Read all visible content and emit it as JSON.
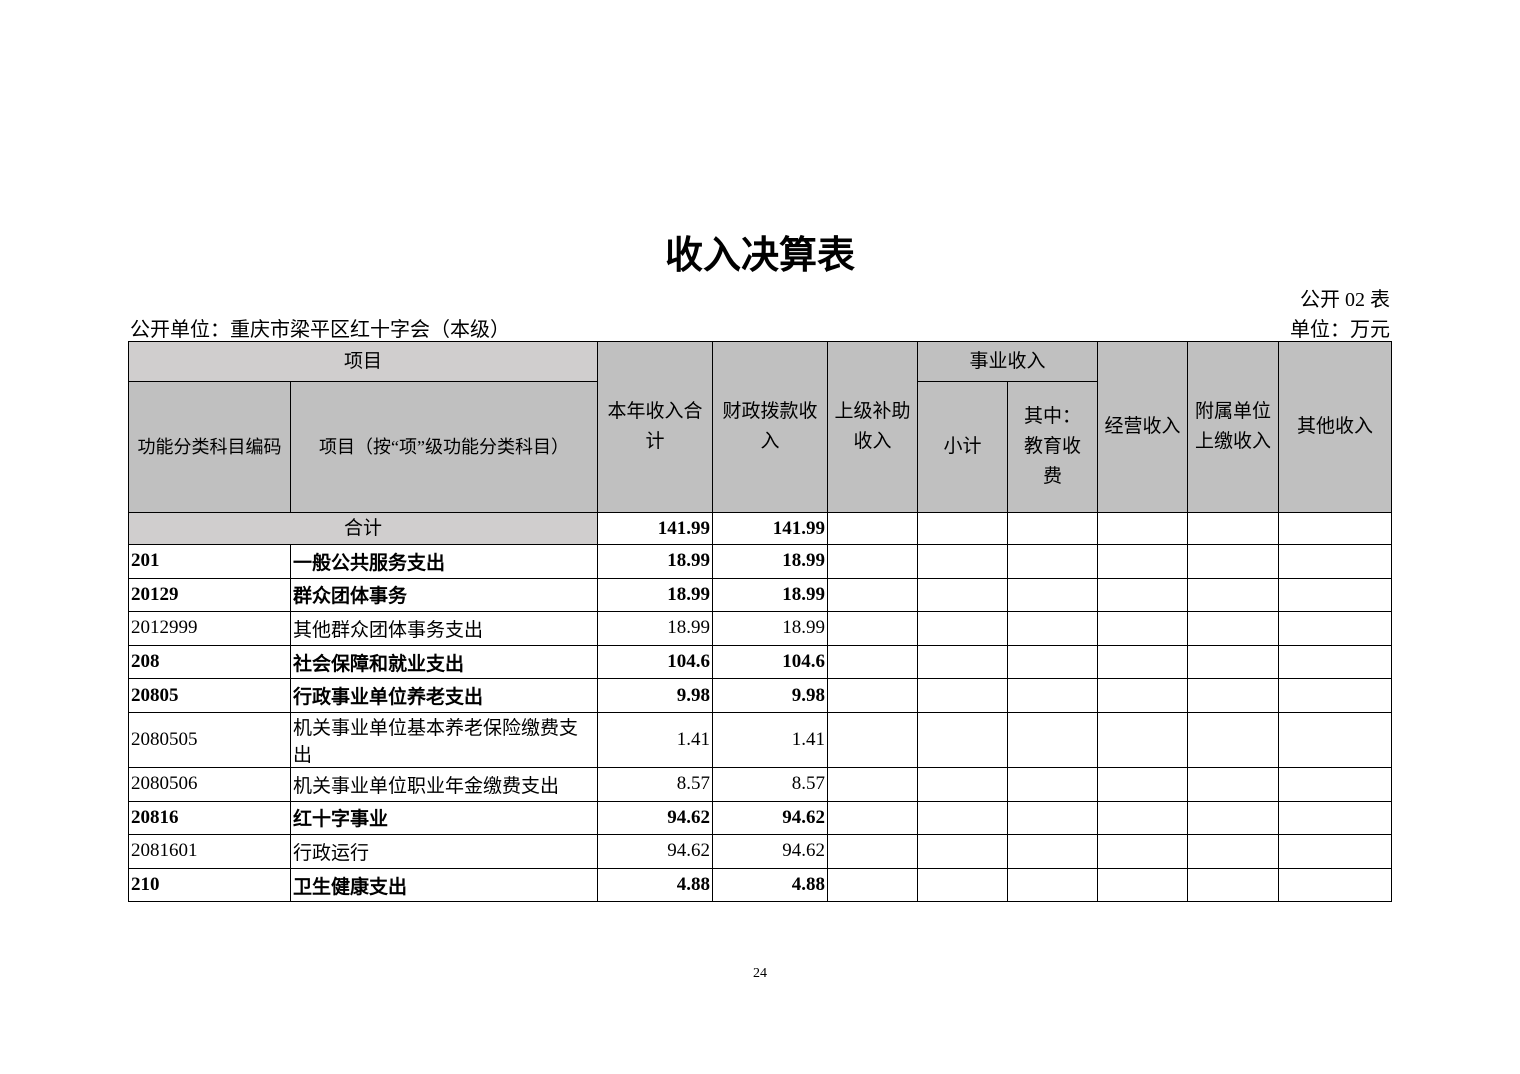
{
  "header": {
    "title": "收入决算表",
    "table_no": "公开 02 表",
    "unit_org": "公开单位：重庆市梁平区红十字会（本级）",
    "unit": "单位：万元"
  },
  "table": {
    "columns": {
      "item_group": "项目",
      "code": "功能分类科目编码",
      "name": "项目（按“项”级功能分类科目）",
      "total": "本年收入合计",
      "fiscal": "财政拨款收入",
      "superior": "上级补助收入",
      "business_group": "事业收入",
      "subtotal": "小计",
      "education": "其中：教育收费",
      "operating": "经营收入",
      "affiliated": "附属单位上缴收入",
      "other": "其他收入"
    },
    "total_row": {
      "label": "合计",
      "total": 141.99,
      "fiscal": 141.99
    },
    "rows": [
      {
        "code": "201",
        "name": "一般公共服务支出",
        "total": 18.99,
        "fiscal": 18.99,
        "bold": true
      },
      {
        "code": "20129",
        "name": "群众团体事务",
        "total": 18.99,
        "fiscal": 18.99,
        "bold": true
      },
      {
        "code": "2012999",
        "name": "其他群众团体事务支出",
        "total": 18.99,
        "fiscal": 18.99,
        "bold": false
      },
      {
        "code": "208",
        "name": "社会保障和就业支出",
        "total": 104.6,
        "fiscal": 104.6,
        "bold": true
      },
      {
        "code": "20805",
        "name": "行政事业单位养老支出",
        "total": 9.98,
        "fiscal": 9.98,
        "bold": true
      },
      {
        "code": "2080505",
        "name": "机关事业单位基本养老保险缴费支出",
        "total": 1.41,
        "fiscal": 1.41,
        "bold": false
      },
      {
        "code": "2080506",
        "name": "机关事业单位职业年金缴费支出",
        "total": 8.57,
        "fiscal": 8.57,
        "bold": false
      },
      {
        "code": "20816",
        "name": "红十字事业",
        "total": 94.62,
        "fiscal": 94.62,
        "bold": true
      },
      {
        "code": "2081601",
        "name": "行政运行",
        "total": 94.62,
        "fiscal": 94.62,
        "bold": false
      },
      {
        "code": "210",
        "name": "卫生健康支出",
        "total": 4.88,
        "fiscal": 4.88,
        "bold": true
      }
    ]
  },
  "footer": {
    "page_number": "24"
  }
}
